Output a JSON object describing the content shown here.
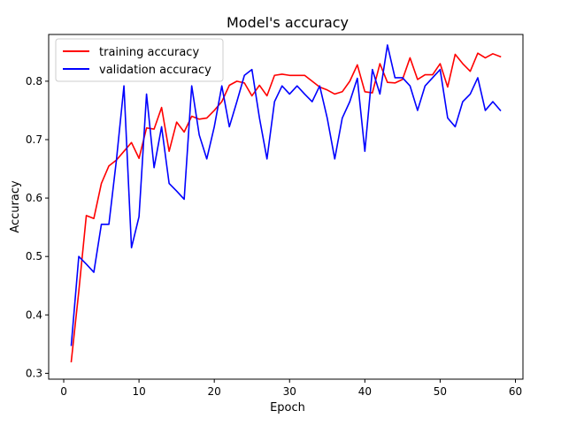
{
  "chart_data": {
    "type": "line",
    "title": "Model's accuracy",
    "xlabel": "Epoch",
    "ylabel": "Accuracy",
    "xlim": [
      -2,
      61
    ],
    "ylim": [
      0.29,
      0.88
    ],
    "xticks": [
      0,
      10,
      20,
      30,
      40,
      50,
      60
    ],
    "yticks": [
      0.3,
      0.4,
      0.5,
      0.6,
      0.7,
      0.8
    ],
    "grid": false,
    "legend_position": "upper-left",
    "x": [
      1,
      2,
      3,
      4,
      5,
      6,
      7,
      8,
      9,
      10,
      11,
      12,
      13,
      14,
      15,
      16,
      17,
      18,
      19,
      20,
      21,
      22,
      23,
      24,
      25,
      26,
      27,
      28,
      29,
      30,
      31,
      32,
      33,
      34,
      35,
      36,
      37,
      38,
      39,
      40,
      41,
      42,
      43,
      44,
      45,
      46,
      47,
      48,
      49,
      50,
      51,
      52,
      53,
      54,
      55,
      56,
      57,
      58
    ],
    "series": [
      {
        "name": "training accuracy",
        "color": "#ff0000",
        "values": [
          0.32,
          0.44,
          0.57,
          0.565,
          0.625,
          0.655,
          0.665,
          0.68,
          0.695,
          0.668,
          0.72,
          0.718,
          0.755,
          0.68,
          0.73,
          0.713,
          0.74,
          0.735,
          0.737,
          0.75,
          0.765,
          0.793,
          0.8,
          0.797,
          0.775,
          0.793,
          0.775,
          0.81,
          0.812,
          0.81,
          0.81,
          0.81,
          0.8,
          0.79,
          0.785,
          0.778,
          0.782,
          0.8,
          0.828,
          0.782,
          0.78,
          0.83,
          0.798,
          0.797,
          0.803,
          0.84,
          0.803,
          0.811,
          0.811,
          0.83,
          0.79,
          0.846,
          0.83,
          0.817,
          0.848,
          0.84,
          0.847,
          0.842
        ]
      },
      {
        "name": "validation accuracy",
        "color": "#0000ff",
        "values": [
          0.348,
          0.5,
          0.487,
          0.473,
          0.555,
          0.555,
          0.665,
          0.792,
          0.515,
          0.568,
          0.778,
          0.652,
          0.722,
          0.625,
          0.612,
          0.598,
          0.792,
          0.708,
          0.667,
          0.722,
          0.792,
          0.722,
          0.765,
          0.81,
          0.82,
          0.737,
          0.667,
          0.765,
          0.792,
          0.778,
          0.792,
          0.778,
          0.765,
          0.792,
          0.737,
          0.667,
          0.737,
          0.765,
          0.805,
          0.68,
          0.82,
          0.778,
          0.862,
          0.806,
          0.806,
          0.792,
          0.75,
          0.792,
          0.806,
          0.82,
          0.737,
          0.722,
          0.765,
          0.778,
          0.806,
          0.75,
          0.765,
          0.75
        ]
      }
    ]
  }
}
